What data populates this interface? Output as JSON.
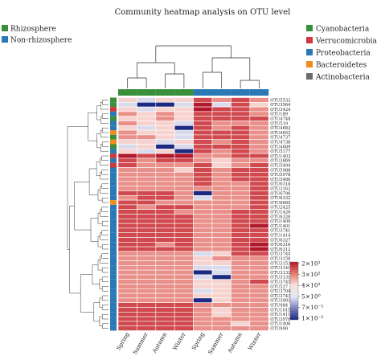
{
  "chart_data": {
    "type": "heatmap",
    "title": "Community heatmap analysis on OTU level",
    "columns": [
      "Spring",
      "Summer",
      "Autumn",
      "Winter",
      "Spring",
      "Summer",
      "Autumn",
      "Winter"
    ],
    "column_groups": [
      "Rhizosphere",
      "Rhizosphere",
      "Rhizosphere",
      "Rhizosphere",
      "Non-rhizosphere",
      "Non-rhizosphere",
      "Non-rhizosphere",
      "Non-rhizosphere"
    ],
    "group_legend": [
      {
        "name": "Rhizosphere",
        "color": "#3a8f3a"
      },
      {
        "name": "Non-rhizosphere",
        "color": "#2a78b5"
      }
    ],
    "phylum_legend": [
      {
        "name": "Cyanobacteria",
        "color": "#3a8f3a"
      },
      {
        "name": "Verrucomicrobia",
        "color": "#d1383b"
      },
      {
        "name": "Proteobacteria",
        "color": "#2a78b5"
      },
      {
        "name": "Bacteroidetes",
        "color": "#f08c1e"
      },
      {
        "name": "Actinobacteria",
        "color": "#6b6b6b"
      }
    ],
    "color_scale": {
      "labels": [
        "2×10¹",
        "3×10²",
        "4×10¹",
        "5×10⁰",
        "7×10⁻¹",
        "1×10⁻¹"
      ],
      "colors": [
        "#b2182b",
        "#e47a6c",
        "#f7e0dc",
        "#e6e8f3",
        "#7a82bb",
        "#1b2a80"
      ]
    },
    "rows": [
      {
        "otu": "OTU5533",
        "phylum": "Cyanobacteria",
        "values": [
          3,
          4,
          3,
          3,
          1,
          2,
          1,
          2
        ]
      },
      {
        "otu": "OTU3564",
        "phylum": "Cyanobacteria",
        "values": [
          4,
          5,
          5,
          4,
          0,
          4,
          1,
          3
        ]
      },
      {
        "otu": "OTU3424",
        "phylum": "Verrucomicrobia",
        "values": [
          3,
          4,
          3,
          3,
          0,
          1,
          1,
          2
        ]
      },
      {
        "otu": "OTU189",
        "phylum": "Proteobacteria",
        "values": [
          2,
          3,
          2,
          3,
          1,
          1,
          1,
          2
        ]
      },
      {
        "otu": "OTU4748",
        "phylum": "Cyanobacteria",
        "values": [
          3,
          3,
          2,
          3,
          1,
          1,
          1,
          1
        ]
      },
      {
        "otu": "OTU519",
        "phylum": "Proteobacteria",
        "values": [
          2,
          3,
          3,
          4,
          1,
          2,
          2,
          2
        ]
      },
      {
        "otu": "OTU4682",
        "phylum": "Proteobacteria",
        "values": [
          3,
          4,
          3,
          5,
          1,
          2,
          1,
          2
        ]
      },
      {
        "otu": "OTU4652",
        "phylum": "Bacteroidetes",
        "values": [
          2,
          3,
          3,
          4,
          1,
          1,
          1,
          2
        ]
      },
      {
        "otu": "OTU4737",
        "phylum": "Cyanobacteria",
        "values": [
          2,
          2,
          3,
          4,
          1,
          1,
          1,
          2
        ]
      },
      {
        "otu": "OTU4738",
        "phylum": "Bacteroidetes",
        "values": [
          3,
          3,
          4,
          3,
          1,
          2,
          1,
          2
        ]
      },
      {
        "otu": "OTU4689",
        "phylum": "Cyanobacteria",
        "values": [
          4,
          3,
          5,
          4,
          1,
          1,
          1,
          2
        ]
      },
      {
        "otu": "OTU5177",
        "phylum": "Proteobacteria",
        "values": [
          3,
          4,
          3,
          5,
          1,
          2,
          1,
          2
        ]
      },
      {
        "otu": "OTU1403",
        "phylum": "Verrucomicrobia",
        "values": [
          0,
          1,
          0,
          0,
          2,
          2,
          1,
          1
        ]
      },
      {
        "otu": "OTU3869",
        "phylum": "Proteobacteria",
        "values": [
          1,
          2,
          1,
          1,
          2,
          3,
          2,
          2
        ]
      },
      {
        "otu": "OTU5494",
        "phylum": "Verrucomicrobia",
        "values": [
          1,
          2,
          2,
          2,
          1,
          3,
          2,
          1
        ]
      },
      {
        "otu": "OTU5988",
        "phylum": "Proteobacteria",
        "values": [
          2,
          2,
          2,
          3,
          1,
          2,
          1,
          1
        ]
      },
      {
        "otu": "OTU5978",
        "phylum": "Proteobacteria",
        "values": [
          2,
          2,
          2,
          2,
          1,
          2,
          1,
          1
        ]
      },
      {
        "otu": "OTU5486",
        "phylum": "Proteobacteria",
        "values": [
          2,
          2,
          2,
          2,
          1,
          2,
          1,
          1
        ]
      },
      {
        "otu": "OTU6318",
        "phylum": "Proteobacteria",
        "values": [
          2,
          2,
          2,
          2,
          1,
          2,
          2,
          1
        ]
      },
      {
        "otu": "OTU3162",
        "phylum": "Proteobacteria",
        "values": [
          2,
          2,
          2,
          2,
          2,
          2,
          2,
          1
        ]
      },
      {
        "otu": "OTU6796",
        "phylum": "Proteobacteria",
        "values": [
          1,
          1,
          1,
          2,
          5,
          2,
          2,
          1
        ]
      },
      {
        "otu": "OTU6332",
        "phylum": "Proteobacteria",
        "values": [
          2,
          1,
          1,
          2,
          4,
          2,
          2,
          1
        ]
      },
      {
        "otu": "OTU6685",
        "phylum": "Bacteroidetes",
        "values": [
          1,
          1,
          2,
          2,
          2,
          2,
          2,
          1
        ]
      },
      {
        "otu": "OTU2425",
        "phylum": "Proteobacteria",
        "values": [
          1,
          2,
          1,
          1,
          2,
          2,
          2,
          1
        ]
      },
      {
        "otu": "OTU1426",
        "phylum": "Proteobacteria",
        "values": [
          1,
          1,
          1,
          2,
          2,
          2,
          1,
          1
        ]
      },
      {
        "otu": "OTU6326",
        "phylum": "Proteobacteria",
        "values": [
          1,
          1,
          1,
          1,
          2,
          2,
          1,
          1
        ]
      },
      {
        "otu": "OTU1409",
        "phylum": "Proteobacteria",
        "values": [
          1,
          1,
          1,
          1,
          2,
          2,
          1,
          1
        ]
      },
      {
        "otu": "OTU1401",
        "phylum": "Proteobacteria",
        "values": [
          1,
          1,
          1,
          1,
          2,
          2,
          1,
          0
        ]
      },
      {
        "otu": "OTU3741",
        "phylum": "Proteobacteria",
        "values": [
          1,
          1,
          1,
          1,
          2,
          2,
          1,
          1
        ]
      },
      {
        "otu": "OTU1414",
        "phylum": "Proteobacteria",
        "values": [
          1,
          1,
          1,
          1,
          2,
          2,
          1,
          1
        ]
      },
      {
        "otu": "OTU6327",
        "phylum": "Proteobacteria",
        "values": [
          1,
          1,
          1,
          1,
          2,
          2,
          1,
          1
        ]
      },
      {
        "otu": "OTU6316",
        "phylum": "Proteobacteria",
        "values": [
          1,
          1,
          2,
          1,
          2,
          2,
          1,
          0
        ]
      },
      {
        "otu": "OTU6312",
        "phylum": "Proteobacteria",
        "values": [
          1,
          1,
          1,
          1,
          2,
          2,
          1,
          0
        ]
      },
      {
        "otu": "OTU3744",
        "phylum": "Proteobacteria",
        "values": [
          2,
          2,
          2,
          2,
          4,
          3,
          1,
          1
        ]
      },
      {
        "otu": "OTU3158",
        "phylum": "Proteobacteria",
        "values": [
          2,
          2,
          2,
          2,
          3,
          2,
          2,
          2
        ]
      },
      {
        "otu": "OTU3153",
        "phylum": "Proteobacteria",
        "values": [
          2,
          2,
          2,
          2,
          3,
          3,
          2,
          2
        ]
      },
      {
        "otu": "OTU3141",
        "phylum": "Proteobacteria",
        "values": [
          2,
          2,
          2,
          2,
          4,
          4,
          2,
          2
        ]
      },
      {
        "otu": "OTU3132",
        "phylum": "Proteobacteria",
        "values": [
          2,
          2,
          2,
          2,
          5,
          4,
          2,
          2
        ]
      },
      {
        "otu": "OTU3131",
        "phylum": "Proteobacteria",
        "values": [
          2,
          2,
          2,
          2,
          4,
          5,
          2,
          2
        ]
      },
      {
        "otu": "OTU3745",
        "phylum": "Proteobacteria",
        "values": [
          2,
          2,
          2,
          2,
          3,
          3,
          2,
          1
        ]
      },
      {
        "otu": "OTU527",
        "phylum": "Proteobacteria",
        "values": [
          2,
          2,
          2,
          2,
          3,
          3,
          2,
          2
        ]
      },
      {
        "otu": "OTU3704",
        "phylum": "Proteobacteria",
        "values": [
          2,
          2,
          2,
          2,
          4,
          3,
          2,
          2
        ]
      },
      {
        "otu": "OTU3743",
        "phylum": "Proteobacteria",
        "values": [
          2,
          2,
          2,
          2,
          3,
          3,
          2,
          2
        ]
      },
      {
        "otu": "OTU3993",
        "phylum": "Proteobacteria",
        "values": [
          2,
          2,
          2,
          2,
          5,
          3,
          2,
          2
        ]
      },
      {
        "otu": "OTU984",
        "phylum": "Proteobacteria",
        "values": [
          1,
          1,
          1,
          1,
          2,
          2,
          2,
          2
        ]
      },
      {
        "otu": "OTU1015",
        "phylum": "Proteobacteria",
        "values": [
          1,
          1,
          1,
          1,
          2,
          3,
          2,
          2
        ]
      },
      {
        "otu": "OTU1411",
        "phylum": "Proteobacteria",
        "values": [
          1,
          1,
          1,
          1,
          2,
          3,
          2,
          2
        ]
      },
      {
        "otu": "OTU3978",
        "phylum": "Proteobacteria",
        "values": [
          1,
          1,
          1,
          1,
          2,
          2,
          2,
          2
        ]
      },
      {
        "otu": "OTU1406",
        "phylum": "Proteobacteria",
        "values": [
          1,
          1,
          1,
          1,
          2,
          2,
          3,
          2
        ]
      },
      {
        "otu": "OTU999",
        "phylum": "Proteobacteria",
        "values": [
          1,
          1,
          1,
          1,
          2,
          2,
          2,
          2
        ]
      }
    ]
  }
}
